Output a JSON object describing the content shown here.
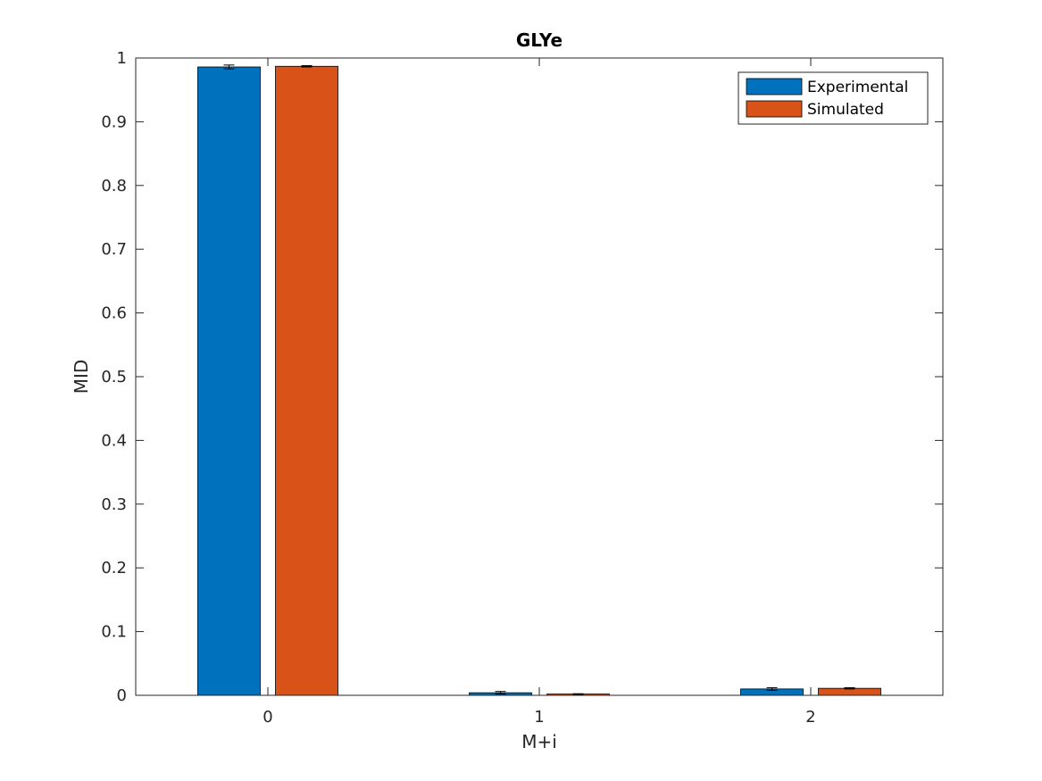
{
  "chart_data": {
    "type": "bar",
    "title": "GLYe",
    "xlabel": "M+i",
    "ylabel": "MID",
    "categories": [
      "0",
      "1",
      "2"
    ],
    "series": [
      {
        "name": "Experimental",
        "values": [
          0.986,
          0.004,
          0.01
        ],
        "errors": [
          0.003,
          0.002,
          0.002
        ],
        "color": "#0072BD"
      },
      {
        "name": "Simulated",
        "values": [
          0.987,
          0.002,
          0.011
        ],
        "errors": [
          0.001,
          0.0005,
          0.001
        ],
        "color": "#D95319"
      }
    ],
    "ylim": [
      0,
      1
    ],
    "yticks": [
      "0",
      "0.1",
      "0.2",
      "0.3",
      "0.4",
      "0.5",
      "0.6",
      "0.7",
      "0.8",
      "0.9",
      "1"
    ],
    "grid": false,
    "legend_position": "top-right"
  }
}
